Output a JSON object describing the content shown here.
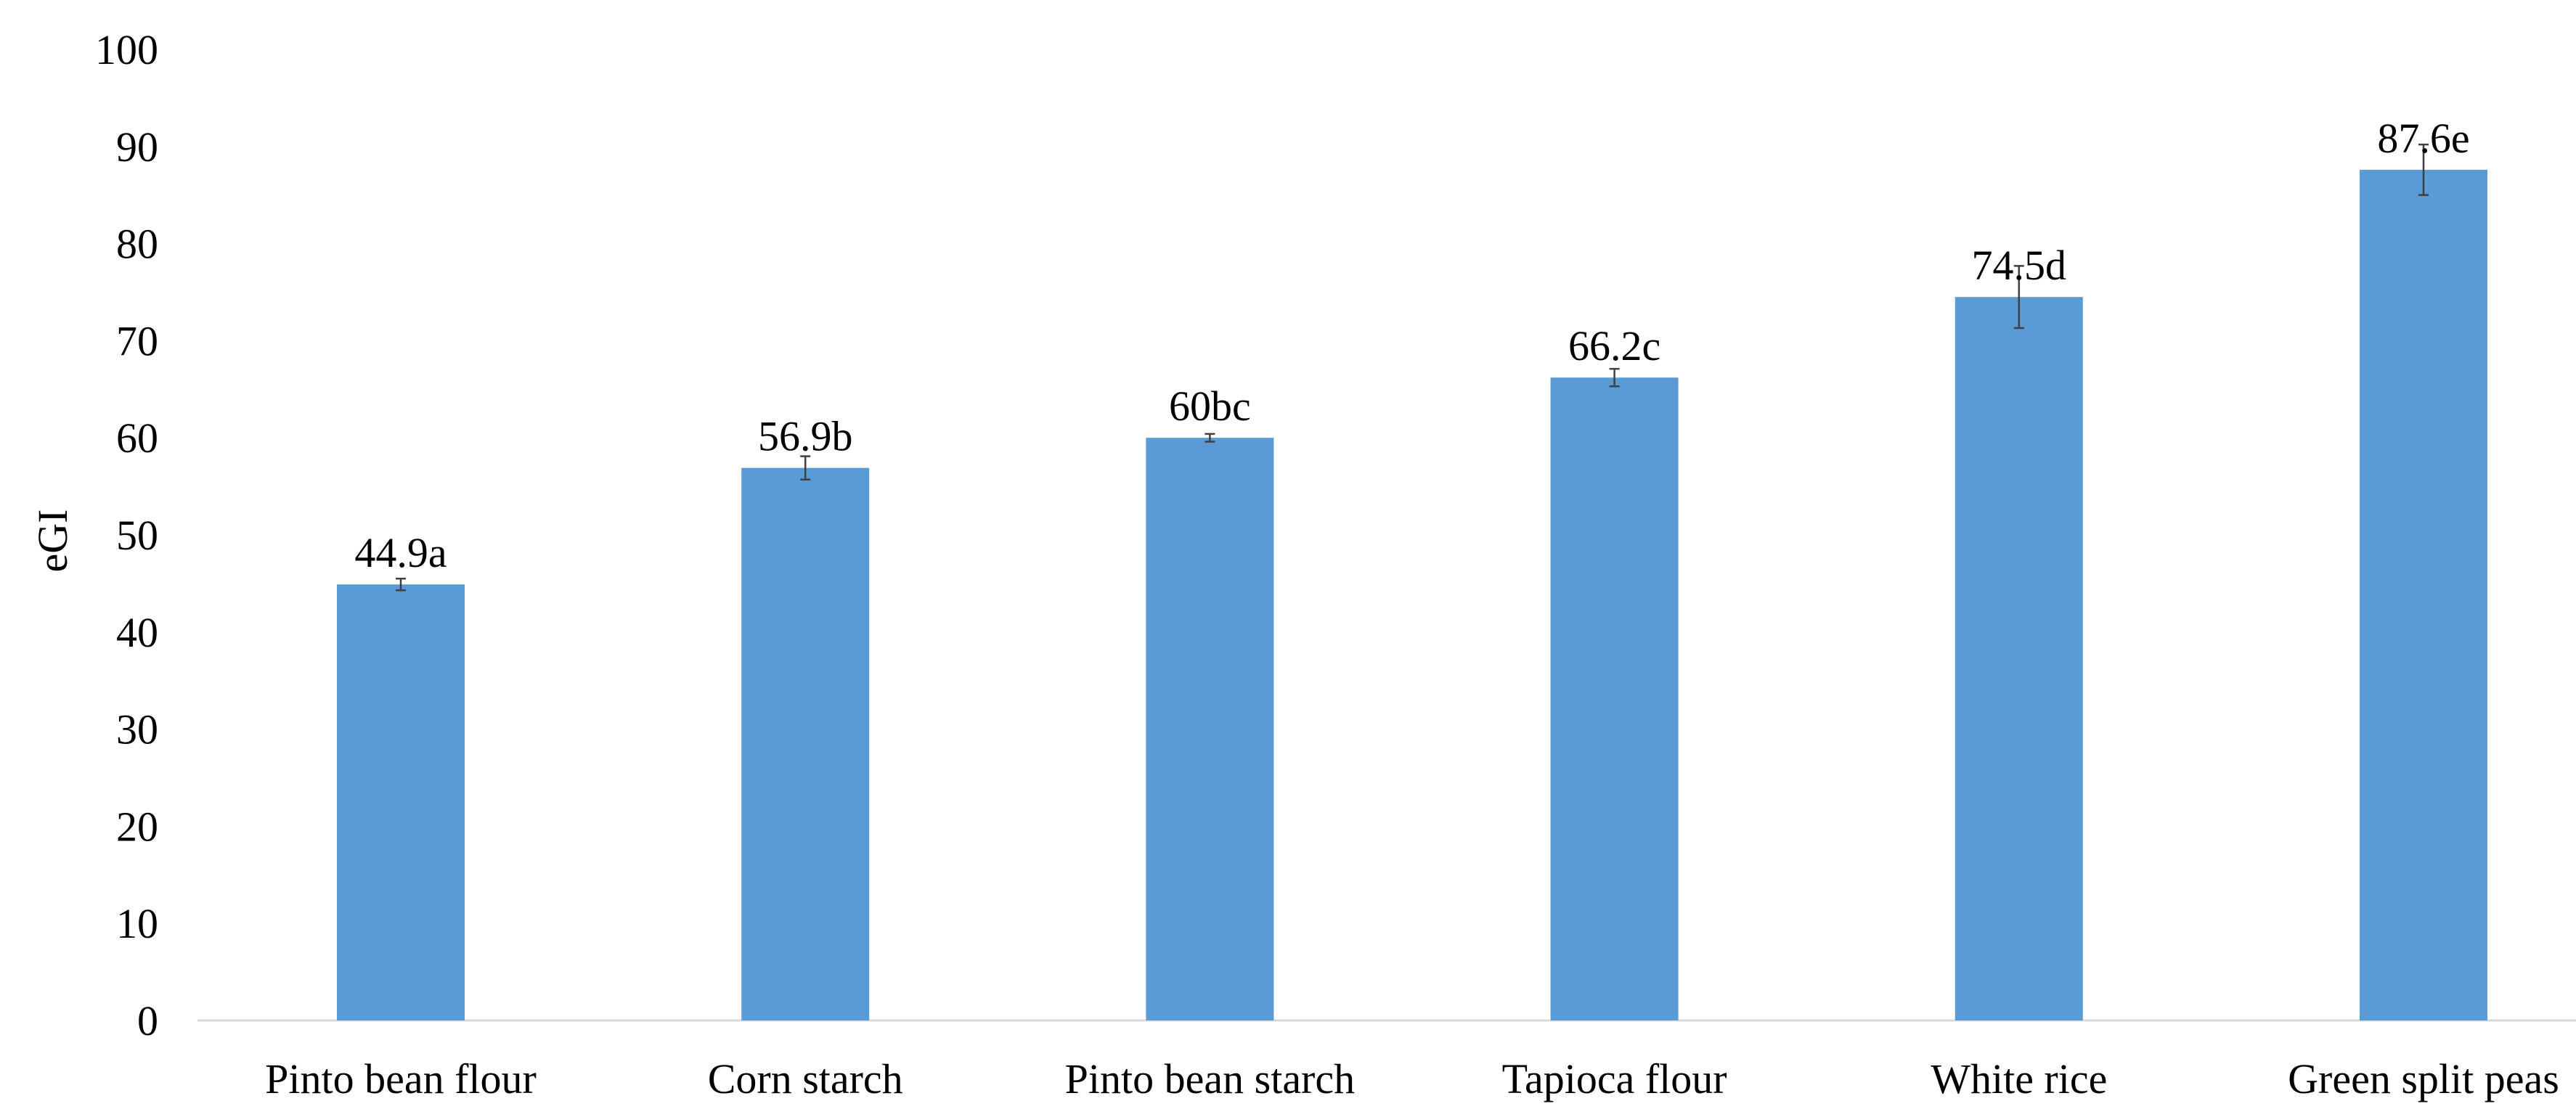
{
  "chart_data": {
    "type": "bar",
    "categories": [
      "Pinto bean flour",
      "Corn starch",
      "Pinto bean starch",
      "Tapioca flour",
      "White rice",
      "Green split peas"
    ],
    "values": [
      44.9,
      56.9,
      60,
      66.2,
      74.5,
      87.6
    ],
    "errors": [
      0.6,
      1.2,
      0.4,
      0.9,
      3.2,
      2.6
    ],
    "data_labels": [
      "44.9a",
      "56.9b",
      "60bc",
      "66.2c",
      "74.5d",
      "87.6e"
    ],
    "title": "",
    "xlabel": "",
    "ylabel": "eGI",
    "ylim": [
      0,
      100
    ],
    "yticks": [
      0,
      10,
      20,
      30,
      40,
      50,
      60,
      70,
      80,
      90,
      100
    ],
    "grid": false,
    "legend": "none",
    "bar_color": "#5B9BD5",
    "axis_color": "#D9D9D9",
    "error_bar_color": "#404040"
  }
}
